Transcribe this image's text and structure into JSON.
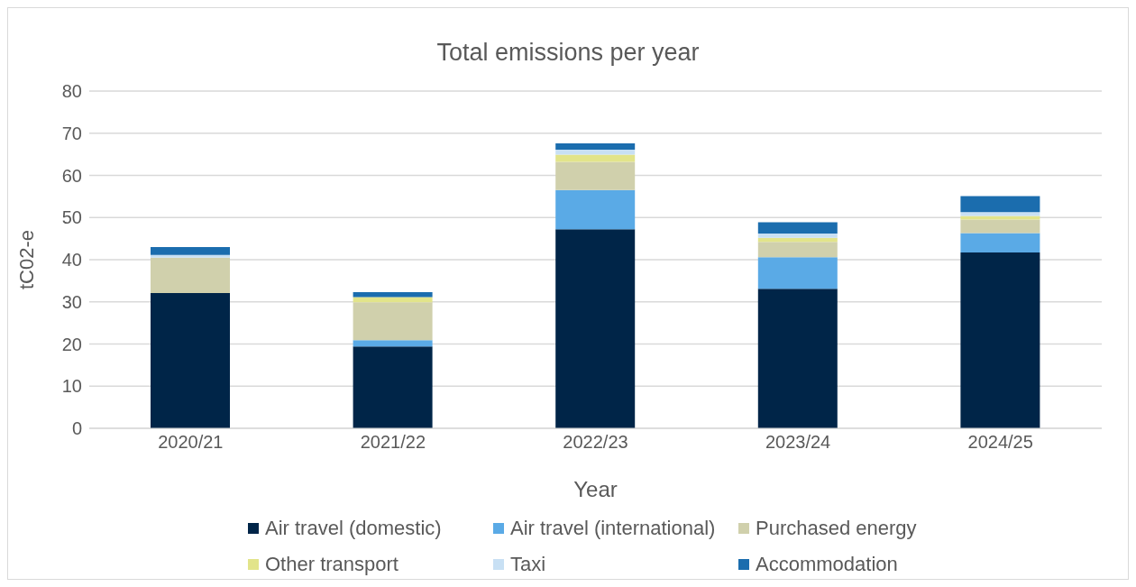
{
  "chart_data": {
    "type": "bar",
    "title": "Total emissions per year",
    "xlabel": "Year",
    "ylabel": "tC02-e",
    "categories": [
      "2020/21",
      "2021/22",
      "2022/23",
      "2023/24",
      "2024/25"
    ],
    "stacked": true,
    "ylim": [
      0,
      80
    ],
    "yticks": [
      0,
      10,
      20,
      30,
      40,
      50,
      60,
      70,
      80
    ],
    "grid": "y",
    "legend": "bottom",
    "series": [
      {
        "name": "Air travel (domestic)",
        "color": "#002548",
        "values": [
          32.1,
          19.4,
          47.2,
          33.1,
          41.7
        ]
      },
      {
        "name": "Air travel (international)",
        "color": "#5aaae6",
        "values": [
          0,
          1.5,
          9.3,
          7.5,
          4.6
        ]
      },
      {
        "name": "Purchased energy",
        "color": "#d0d0ac",
        "values": [
          8.4,
          9.0,
          6.7,
          3.6,
          3.2
        ]
      },
      {
        "name": "Other transport",
        "color": "#e2e48a",
        "values": [
          0,
          1.2,
          1.7,
          1.0,
          0.9
        ]
      },
      {
        "name": "Taxi",
        "color": "#c8e0f4",
        "values": [
          0.6,
          null,
          1.2,
          1.0,
          0.9
        ]
      },
      {
        "name": "Accommodation",
        "color": "#1b6dae",
        "values": [
          1.9,
          1.2,
          1.5,
          2.7,
          3.8
        ]
      }
    ]
  }
}
